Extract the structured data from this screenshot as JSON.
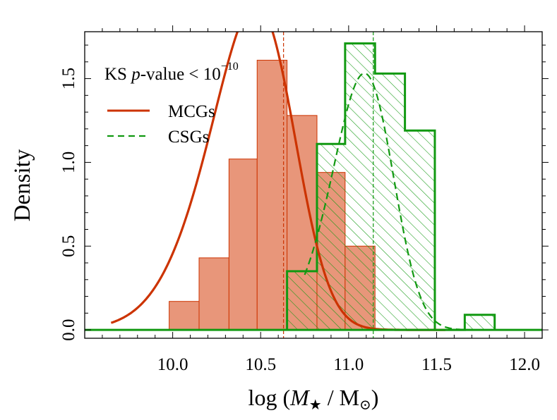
{
  "chart_data": {
    "type": "histogram",
    "title": "",
    "xlabel": "log (M★ / M⊙)",
    "ylabel": "Density",
    "xlim": [
      9.5,
      12.1
    ],
    "ylim": [
      -0.05,
      1.78
    ],
    "x_ticks": [
      {
        "value": 10.0,
        "label": "10.0"
      },
      {
        "value": 10.5,
        "label": "10.5"
      },
      {
        "value": 11.0,
        "label": "11.0"
      },
      {
        "value": 11.5,
        "label": "11.5"
      },
      {
        "value": 12.0,
        "label": "12.0"
      }
    ],
    "y_ticks": [
      {
        "value": 0.0,
        "label": "0.0"
      },
      {
        "value": 0.5,
        "label": "0.5"
      },
      {
        "value": 1.0,
        "label": "1.0"
      },
      {
        "value": 1.5,
        "label": "1.5"
      }
    ],
    "annotation": {
      "prefix": "KS ",
      "var": "p",
      "suffix": "-value < 10",
      "exponent": "−10"
    },
    "legend": {
      "placement": "top-left",
      "entries": [
        {
          "label": "MCGs",
          "color": "#cc3300",
          "style": "solid"
        },
        {
          "label": "CSGs",
          "color": "#119911",
          "style": "dashed"
        }
      ]
    },
    "series": [
      {
        "name": "MCGs",
        "color": "#cc3300",
        "fill": "#e8967a",
        "bin_edges": [
          9.98,
          10.15,
          10.32,
          10.48,
          10.65,
          10.82,
          10.98,
          11.15
        ],
        "values": [
          0.17,
          0.43,
          1.02,
          1.61,
          1.28,
          0.94,
          0.5
        ],
        "median": 10.63,
        "density_curve": {
          "type": "skew-normal",
          "xi": 10.66,
          "omega": 0.35,
          "alpha": -1.8,
          "scale": 1.35,
          "x_range": [
            9.65,
            11.55
          ]
        }
      },
      {
        "name": "CSGs",
        "color": "#119911",
        "fill": "hatch",
        "bin_edges": [
          10.65,
          10.82,
          10.98,
          11.15,
          11.32,
          11.49,
          11.66,
          11.83
        ],
        "values": [
          0.35,
          1.11,
          1.71,
          1.53,
          1.19,
          0.0,
          0.09
        ],
        "median": 11.14,
        "density_curve": {
          "type": "skew-normal",
          "xi": 11.22,
          "omega": 0.24,
          "alpha": -1.5,
          "scale": 1.12,
          "x_range": [
            10.75,
            11.95
          ]
        }
      }
    ]
  }
}
